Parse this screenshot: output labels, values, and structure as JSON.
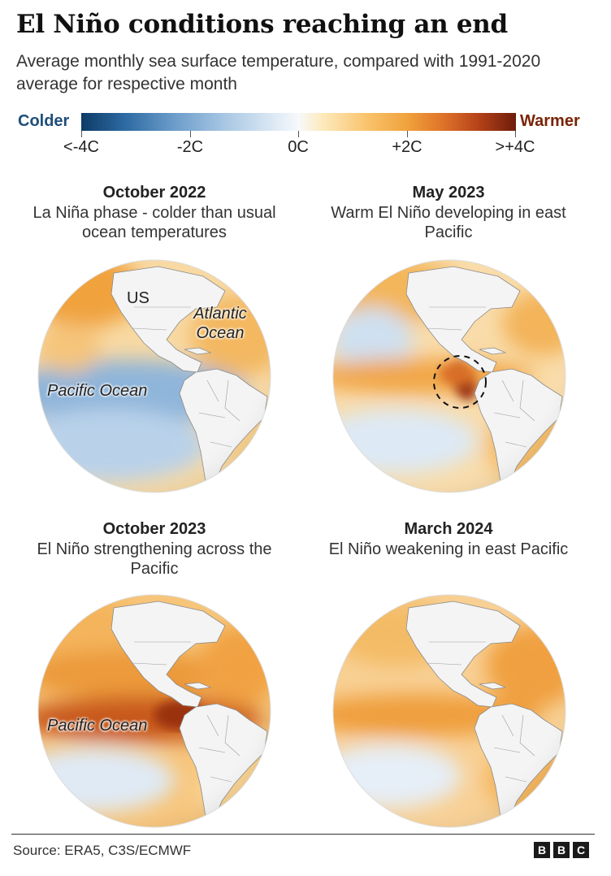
{
  "title": "El Niño conditions reaching an end",
  "subtitle": "Average monthly sea surface temperature, compared with 1991-2020 average for respective month",
  "legend": {
    "cold_label": "Colder",
    "warm_label": "Warmer",
    "ticks": [
      "<-4C",
      "-2C",
      "0C",
      "+2C",
      ">+4C"
    ],
    "colors": {
      "cold_text": "#1f4e7a",
      "warm_text": "#7a2406",
      "scale": [
        "#0d3b66",
        "#2d6aa3",
        "#a8c7e3",
        "#f7f9fb",
        "#f9c26a",
        "#e0742a",
        "#6e1c0a"
      ]
    }
  },
  "panels": [
    {
      "date": "October 2022",
      "caption": "La Niña phase - colder than usual ocean temperatures",
      "labels": {
        "us": "US",
        "atlantic": "Atlantic Ocean",
        "pacific": "Pacific Ocean"
      }
    },
    {
      "date": "May 2023",
      "caption": "Warm El Niño developing in east Pacific"
    },
    {
      "date": "October 2023",
      "caption": "El Niño strengthening across the Pacific",
      "labels": {
        "pacific": "Pacific Ocean"
      }
    },
    {
      "date": "March 2024",
      "caption": "El Niño weakening in east Pacific"
    }
  ],
  "footer": {
    "source": "Source: ERA5, C3S/ECMWF",
    "logo": [
      "B",
      "B",
      "C"
    ]
  }
}
